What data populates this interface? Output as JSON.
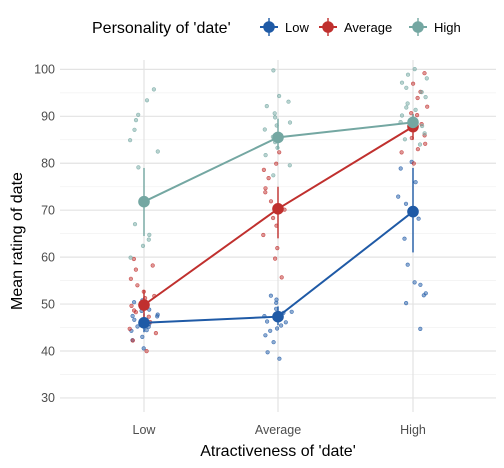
{
  "chart_data": {
    "type": "scatter",
    "xlabel": "Atractiveness of 'date'",
    "ylabel": "Mean rating of date",
    "categories": [
      "Low",
      "Average",
      "High"
    ],
    "ylim": [
      27,
      102
    ],
    "yticks": [
      30,
      40,
      50,
      60,
      70,
      80,
      90,
      100
    ],
    "grid": true,
    "legend": {
      "title": "Personality of 'date'",
      "placement": "top",
      "entries": [
        "Low",
        "Average",
        "High"
      ]
    },
    "series": [
      {
        "name": "Low",
        "color": "#1f5aa6",
        "means": [
          46,
          47.3,
          69.7
        ],
        "error": [
          [
            44,
            48
          ],
          [
            45.5,
            49.5
          ],
          [
            61,
            79
          ]
        ],
        "points": [
          [
            40.5,
            42.5,
            43,
            44,
            44.5,
            45,
            45.5,
            46,
            46,
            46.5,
            47,
            47,
            47.5,
            48,
            48.5,
            49,
            50,
            51
          ],
          [
            38.5,
            39.5,
            42,
            43,
            44,
            45,
            45.5,
            46,
            46.5,
            47,
            47.5,
            48,
            48.5,
            49,
            50,
            51,
            52
          ],
          [
            45,
            50,
            51.5,
            52,
            54,
            55,
            58.5,
            64,
            68,
            71,
            73,
            76,
            78.5,
            80
          ]
        ]
      },
      {
        "name": "Average",
        "color": "#c0302e",
        "means": [
          49.8,
          70.3,
          87.8
        ],
        "error": [
          [
            47,
            53
          ],
          [
            64,
            75
          ],
          [
            85,
            90.5
          ]
        ],
        "points": [
          [
            40,
            42,
            44,
            45,
            46,
            47,
            48,
            49,
            50,
            51,
            52,
            53,
            54,
            55.5,
            57.5,
            58.5,
            60
          ],
          [
            56,
            60,
            62,
            64.5,
            66.5,
            68,
            70,
            72,
            73.5,
            75,
            77,
            78.5,
            80,
            82
          ],
          [
            80,
            82,
            83,
            84,
            85,
            86,
            87,
            88,
            89,
            90,
            91,
            92,
            94,
            95,
            97,
            99
          ]
        ]
      },
      {
        "name": "High",
        "color": "#74a7a2",
        "means": [
          71.8,
          85.5,
          88.7
        ],
        "error": [
          [
            64.5,
            79
          ],
          [
            83,
            89.5
          ],
          [
            87,
            90.5
          ]
        ],
        "points": [
          [
            60,
            62,
            64,
            65,
            67,
            79.5,
            82.5,
            85,
            87,
            89,
            90,
            93.5,
            96
          ],
          [
            77.5,
            79.5,
            82,
            83.5,
            84.5,
            86,
            87,
            88,
            89,
            90,
            91,
            92,
            93.5,
            94.5,
            100
          ],
          [
            84,
            85,
            86,
            87,
            88,
            89,
            90,
            91,
            92,
            93,
            94,
            95,
            96,
            97,
            98,
            99,
            100
          ]
        ]
      }
    ]
  }
}
